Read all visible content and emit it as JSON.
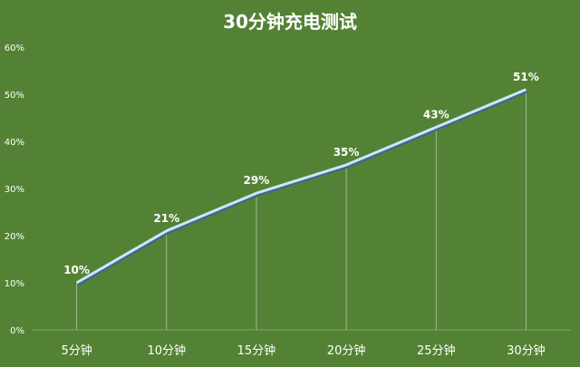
{
  "chart_data": {
    "type": "line",
    "title": "30分钟充电测试",
    "categories": [
      "5分钟",
      "10分钟",
      "15分钟",
      "20分钟",
      "25分钟",
      "30分钟"
    ],
    "series": [
      {
        "values": [
          10,
          21,
          29,
          35,
          43,
          51
        ],
        "labels": [
          "10%",
          "21%",
          "29%",
          "35%",
          "43%",
          "51%"
        ],
        "color": "#cfe6f7"
      }
    ],
    "yticks": [
      "0%",
      "10%",
      "20%",
      "30%",
      "40%",
      "50%",
      "60%"
    ],
    "ylim": [
      0,
      60
    ],
    "grid": false,
    "legend": "none",
    "background": "#548235"
  }
}
